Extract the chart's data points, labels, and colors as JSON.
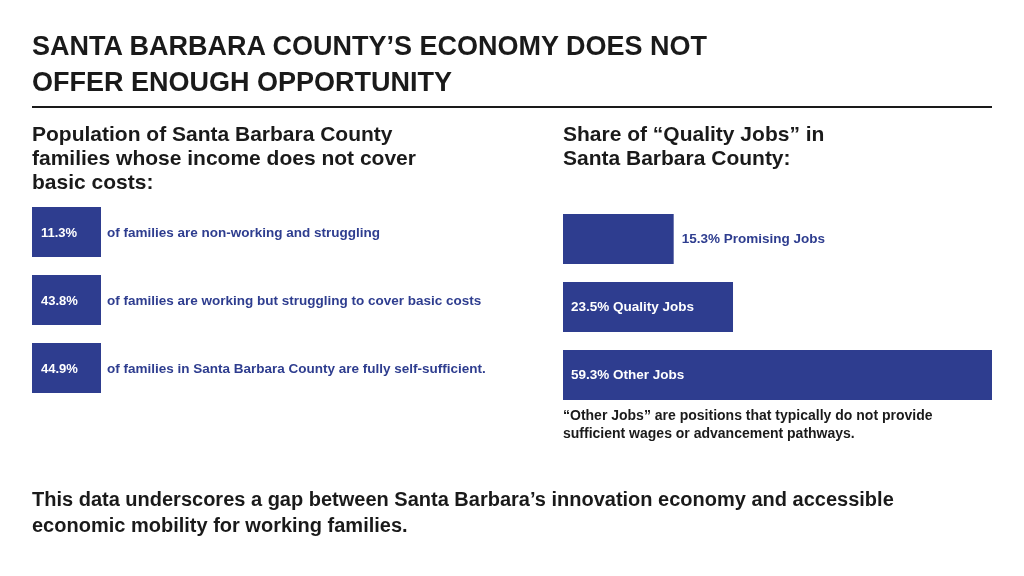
{
  "chart_data": [
    {
      "type": "other",
      "title": "SANTA BARBARA COUNTY’S ECONOMY DOES NOT OFFER ENOUGH OPPORTUNITY",
      "subtitle": "Population of Santa Barbara County families whose income does not cover basic costs:",
      "categories": [
        "of families are non-working and struggling",
        "of families are working but struggling to cover basic costs",
        "of families in Santa Barbara County are fully self-sufficient."
      ],
      "values": [
        11.3,
        43.8,
        44.9
      ],
      "value_labels": [
        "11.3%",
        "43.8%",
        "44.9%"
      ],
      "color": "#2e3d8f",
      "annotations": [
        "This data underscores a gap between Santa Barbara’s innovation economy and accessible economic mobility for working families."
      ]
    },
    {
      "type": "bar",
      "orientation": "horizontal",
      "title": "Share of “Quality Jobs” in Santa Barbara County:",
      "categories": [
        null,
        null,
        null
      ],
      "values": [
        15.3,
        23.5,
        59.3
      ],
      "value_labels": [
        "15.3% Promising Jobs",
        "23.5% Quality Jobs",
        "59.3% Other Jobs"
      ],
      "color": "#2e3d8f",
      "annotations": [
        "“Other Jobs” are positions that typically do not provide sufficient wages or advancement pathways."
      ]
    }
  ]
}
